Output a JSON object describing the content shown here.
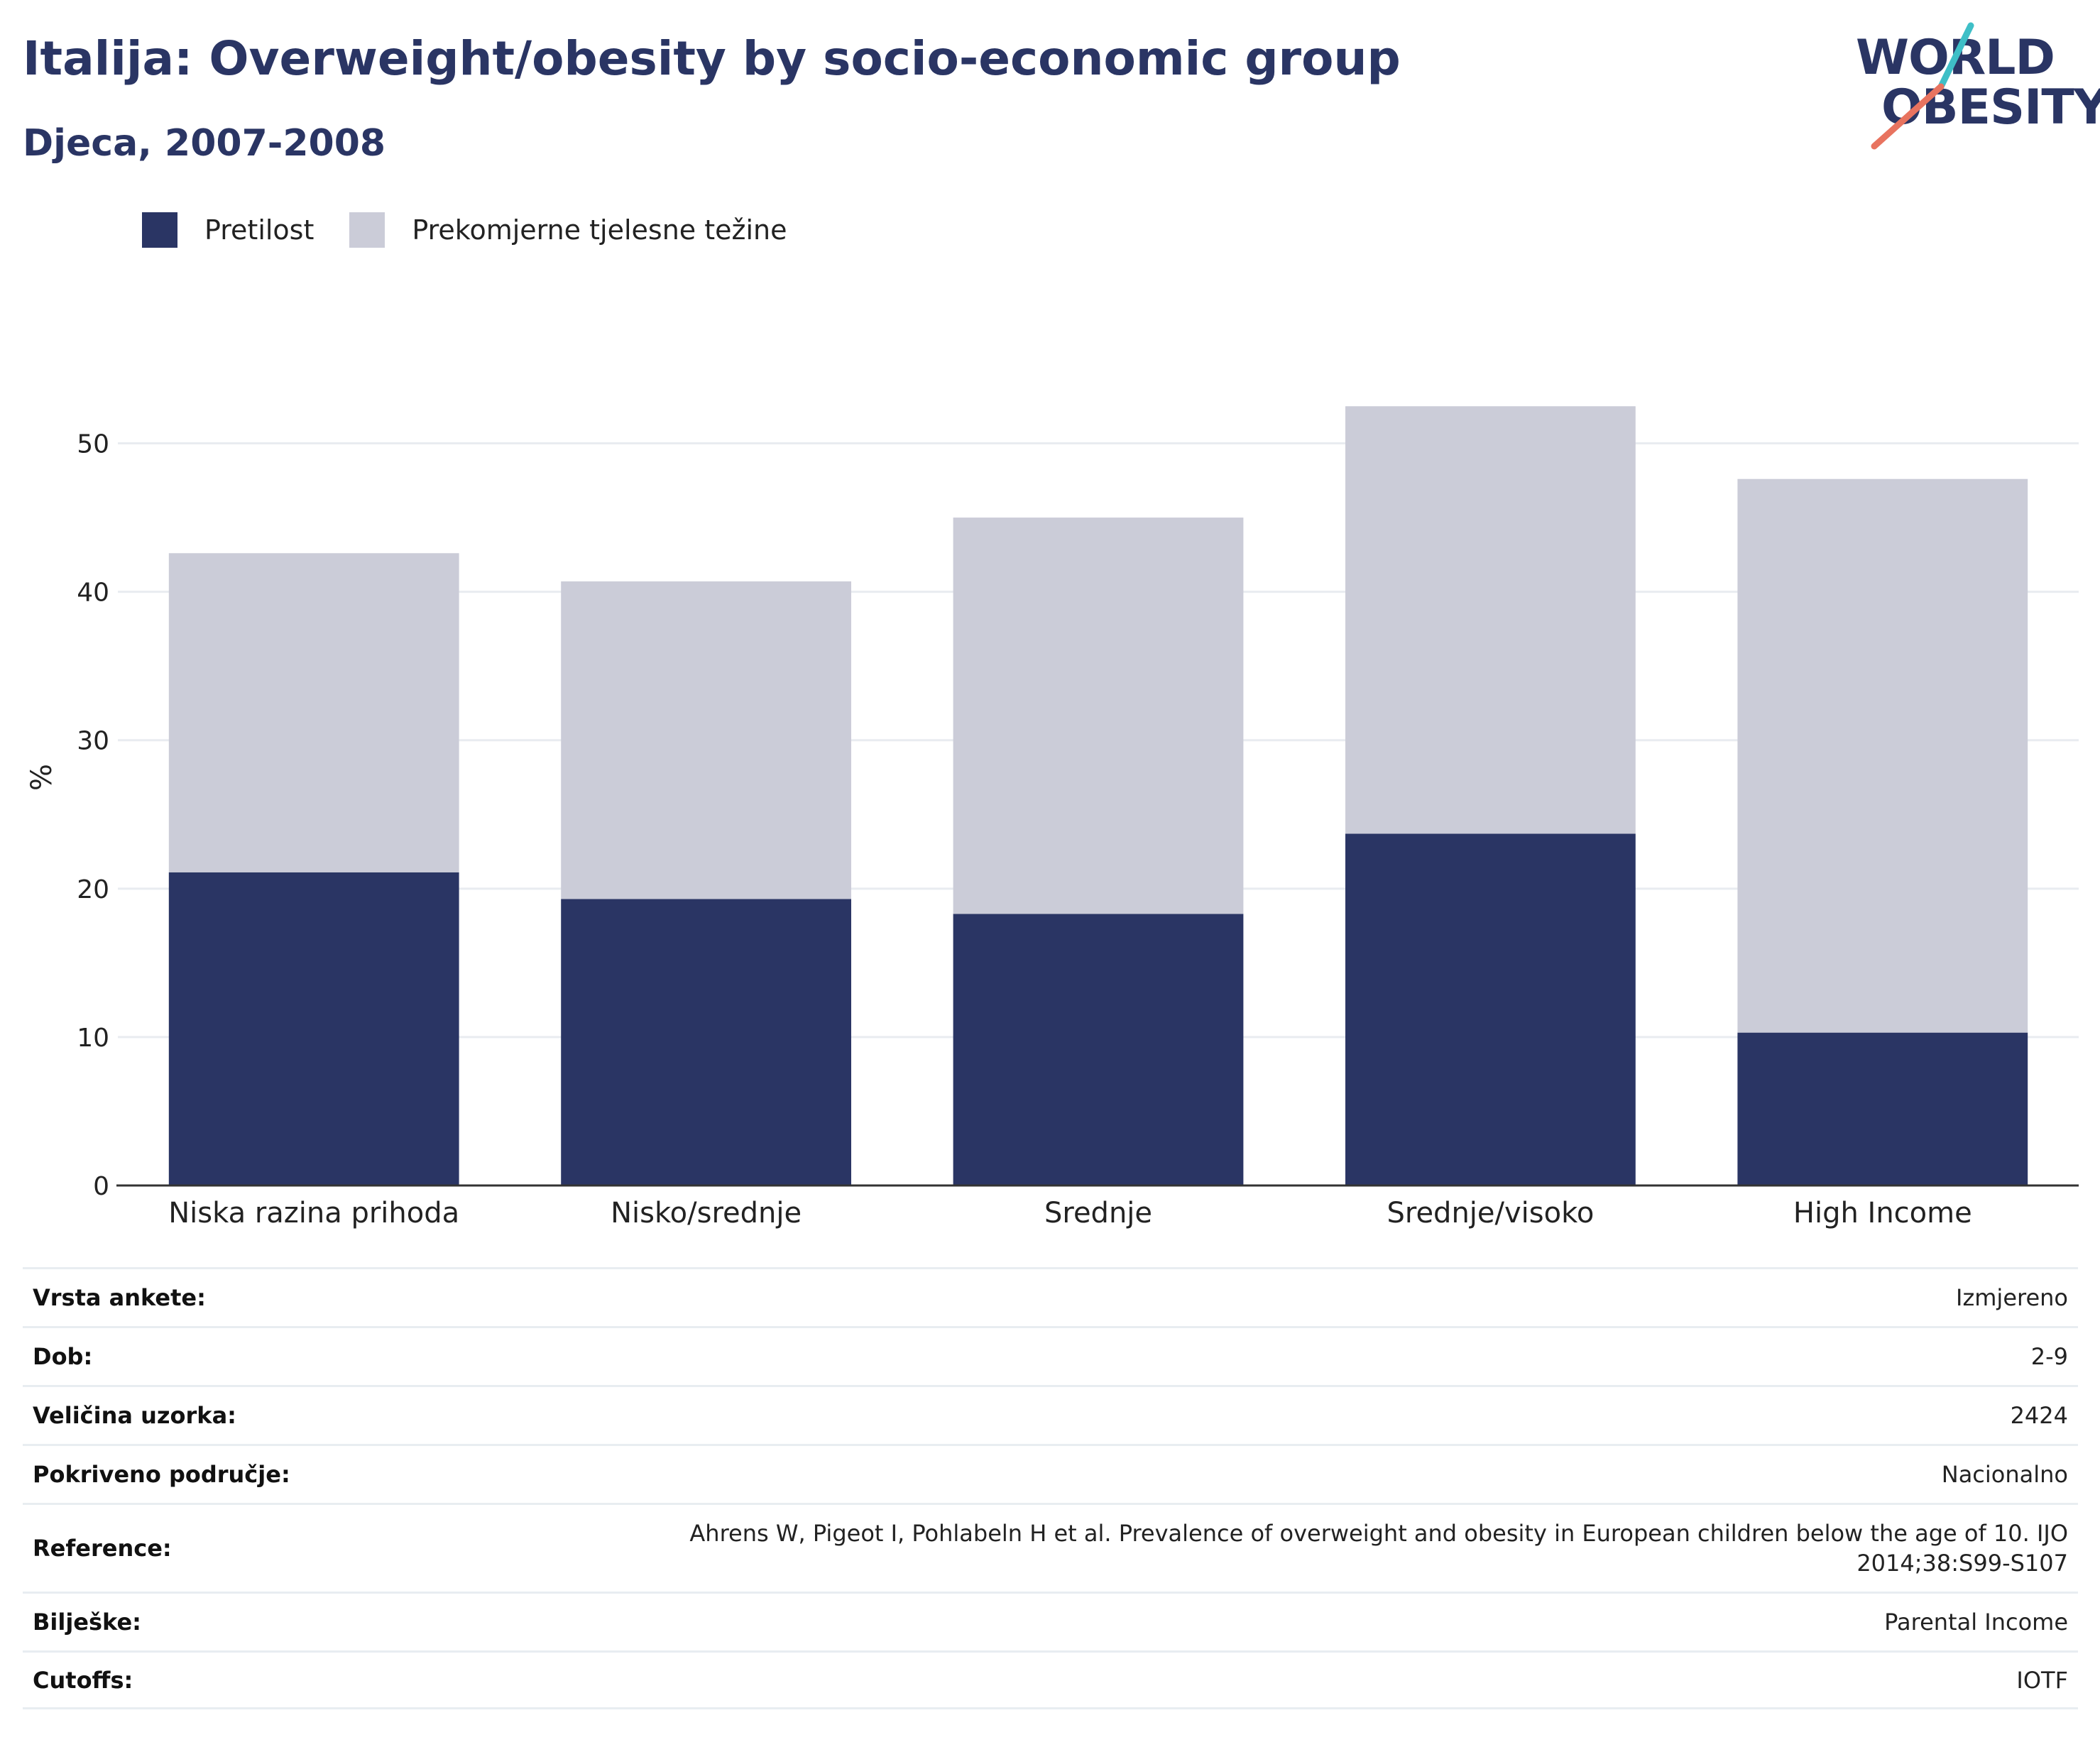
{
  "header": {
    "title": "Italija: Overweight/obesity by socio-economic group",
    "subtitle": "Djeca, 2007-2008"
  },
  "logo": {
    "line1": "WORLD",
    "line2": "OBESITY",
    "accent_colors": [
      "#3fbfc7",
      "#e8735f"
    ]
  },
  "colors": {
    "obesity": "#2a3564",
    "overweight": "#cbccd8",
    "grid": "#e9ecf0",
    "axis": "#333333"
  },
  "chart_data": {
    "type": "bar",
    "stacked": true,
    "categories": [
      "Niska razina prihoda",
      "Nisko/srednje",
      "Srednje",
      "Srednje/visoko",
      "High Income"
    ],
    "series": [
      {
        "name": "Pretilost",
        "color": "#2a3564",
        "values": [
          21.1,
          19.3,
          18.3,
          23.7,
          10.3
        ]
      },
      {
        "name": "Prekomjerne tjelesne težine",
        "color": "#cbccd8",
        "values": [
          21.5,
          21.4,
          26.7,
          28.8,
          37.3
        ]
      }
    ],
    "ylabel": "%",
    "xlabel": "",
    "ylim": [
      0,
      55
    ],
    "yticks": [
      0,
      10,
      20,
      30,
      40,
      50
    ],
    "grid": true,
    "legend_position": "top-left"
  },
  "metadata": [
    {
      "key": "Vrsta ankete:",
      "value": "Izmjereno"
    },
    {
      "key": "Dob:",
      "value": "2-9"
    },
    {
      "key": "Veličina uzorka:",
      "value": "2424"
    },
    {
      "key": "Pokriveno područje:",
      "value": "Nacionalno"
    },
    {
      "key": "Reference:",
      "value": "Ahrens W, Pigeot I, Pohlabeln H et al. Prevalence of overweight and obesity in European children below the age of 10. IJO 2014;38:S99-S107"
    },
    {
      "key": "Bilješke:",
      "value": "Parental Income"
    },
    {
      "key": "Cutoffs:",
      "value": "IOTF"
    }
  ]
}
